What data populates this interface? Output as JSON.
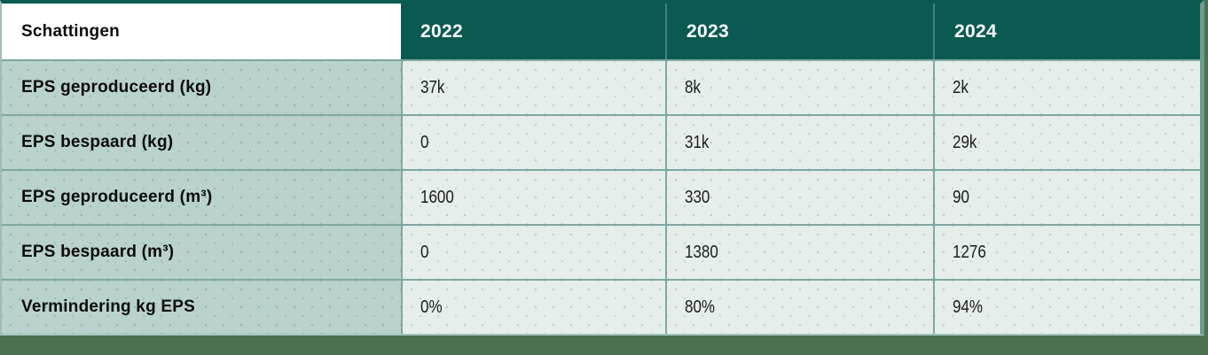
{
  "table": {
    "header": {
      "title": "Schattingen",
      "years": [
        "2022",
        "2023",
        "2024"
      ]
    },
    "rows": [
      {
        "label": "EPS geproduceerd (kg)",
        "values": [
          "37k",
          "8k",
          "2k"
        ]
      },
      {
        "label": "EPS bespaard (kg)",
        "values": [
          "0",
          "31k",
          "29k"
        ]
      },
      {
        "label": "EPS geproduceerd (m³)",
        "values": [
          "1600",
          "330",
          "90"
        ]
      },
      {
        "label": "EPS bespaard (m³)",
        "values": [
          "0",
          "1380",
          "1276"
        ]
      },
      {
        "label": "Vermindering kg EPS",
        "values": [
          "0%",
          "80%",
          "94%"
        ]
      }
    ]
  },
  "chart_data": {
    "type": "table",
    "title": "Schattingen",
    "columns": [
      "Schattingen",
      "2022",
      "2023",
      "2024"
    ],
    "rows": [
      [
        "EPS geproduceerd (kg)",
        "37k",
        "8k",
        "2k"
      ],
      [
        "EPS bespaard (kg)",
        "0",
        "31k",
        "29k"
      ],
      [
        "EPS geproduceerd (m³)",
        "1600",
        "330",
        "90"
      ],
      [
        "EPS bespaard (m³)",
        "0",
        "1380",
        "1276"
      ],
      [
        "Vermindering kg EPS",
        "0%",
        "80%",
        "94%"
      ]
    ]
  },
  "colors": {
    "header_teal": "#0b5a51",
    "label_column_bg": "#b9d2cd",
    "data_cell_bg": "#e6eeec",
    "grid_line": "#7fa8a2",
    "outer_green_bar": "#4a7150",
    "right_border_green": "#6f9b8e",
    "header_text": "#ffffff",
    "body_text": "#0c0c0c"
  }
}
